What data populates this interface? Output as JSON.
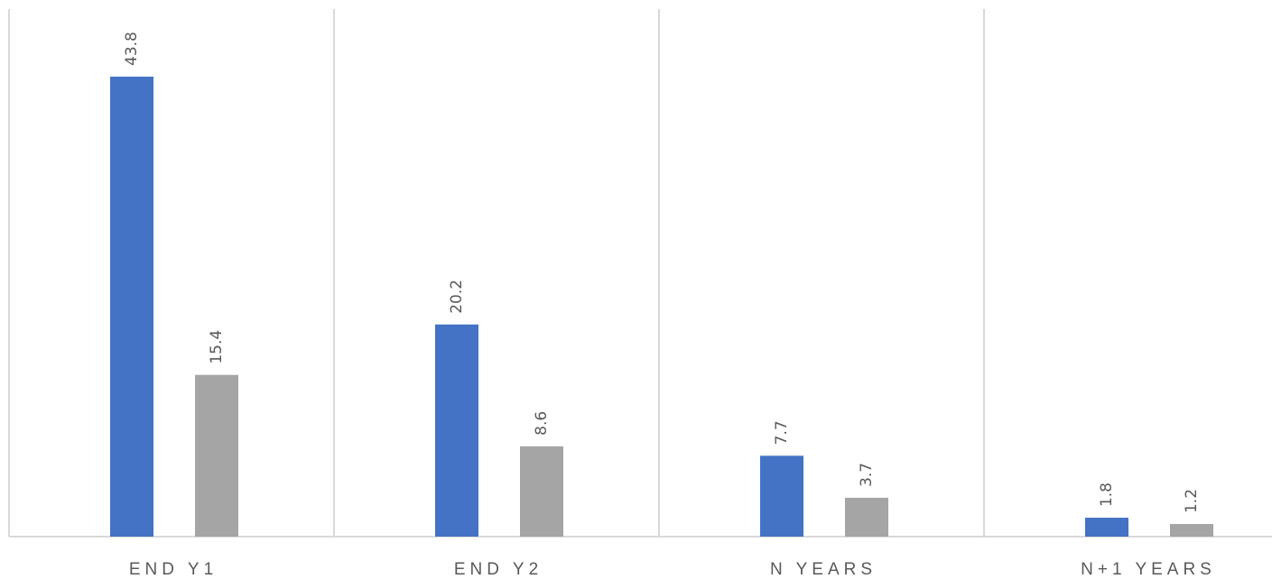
{
  "chart_data": {
    "type": "bar",
    "categories": [
      "END Y1",
      "END Y2",
      "N YEARS",
      "N+1 YEARS"
    ],
    "series": [
      {
        "values": [
          43.8,
          20.2,
          7.7,
          1.8
        ],
        "color": "#4472c4"
      },
      {
        "values": [
          15.4,
          8.6,
          3.7,
          1.2
        ],
        "color": "#a5a5a5"
      }
    ],
    "data_labels": {
      "show": true,
      "rotation": "vertical"
    },
    "ylim": [
      0,
      50
    ],
    "title": "",
    "xlabel": "",
    "ylabel": "",
    "grid": "vertical category separators",
    "legend": "none",
    "colors": {
      "gridline": "#d9d9d9",
      "text": "#595959"
    }
  }
}
